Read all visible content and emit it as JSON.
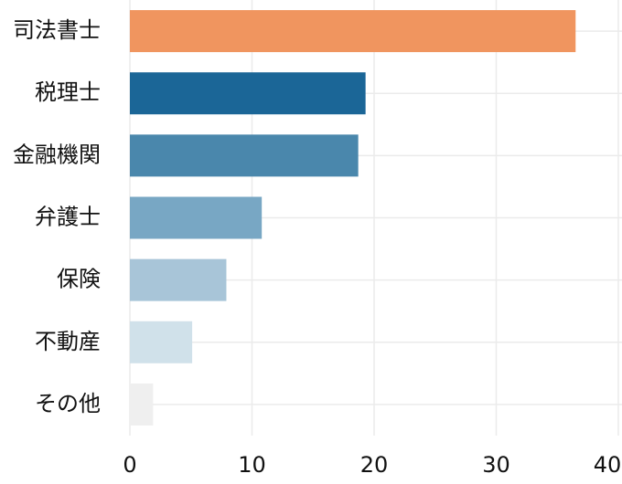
{
  "chart_data": {
    "type": "barh",
    "categories": [
      "司法書士",
      "税理士",
      "金融機関",
      "弁護士",
      "保険",
      "不動産",
      "その他"
    ],
    "values": [
      36.5,
      19.3,
      18.7,
      10.8,
      7.9,
      5.1,
      1.9
    ],
    "colors": [
      "#f0955f",
      "#1b6697",
      "#4a87ac",
      "#78a7c4",
      "#a8c5d8",
      "#d0e1ea",
      "#efefef"
    ],
    "xlim": [
      0,
      40
    ],
    "xticks": [
      0,
      10,
      20,
      30,
      40
    ],
    "grid": true
  }
}
